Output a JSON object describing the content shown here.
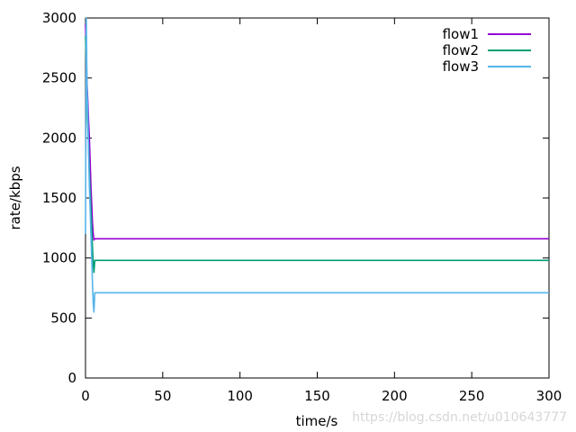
{
  "chart_data": {
    "type": "line",
    "title": "",
    "xlabel": "time/s",
    "ylabel": "rate/kbps",
    "xlim": [
      0,
      300
    ],
    "ylim": [
      0,
      3000
    ],
    "xticks": [
      0,
      50,
      100,
      150,
      200,
      250,
      300
    ],
    "yticks": [
      0,
      500,
      1000,
      1500,
      2000,
      2500,
      3000
    ],
    "grid": false,
    "legend": "top-right",
    "series": [
      {
        "name": "flow1",
        "color": "#9400d3",
        "x": [
          0,
          0.5,
          1,
          1.5,
          2,
          2.5,
          3,
          3.5,
          4,
          4.5,
          5,
          5.5,
          6,
          10,
          50,
          100,
          150,
          200,
          250,
          300
        ],
        "y": [
          2950,
          2700,
          2450,
          2300,
          2150,
          2000,
          1800,
          1600,
          1450,
          1300,
          1200,
          1150,
          1160,
          1160,
          1160,
          1160,
          1160,
          1160,
          1160,
          1160
        ]
      },
      {
        "name": "flow2",
        "color": "#009e73",
        "x": [
          0,
          0.5,
          1,
          1.5,
          2,
          2.5,
          3,
          3.5,
          4,
          4.5,
          5,
          5.5,
          6,
          10,
          50,
          100,
          150,
          200,
          250,
          300
        ],
        "y": [
          2850,
          2600,
          2300,
          2100,
          1950,
          1700,
          1550,
          1400,
          1250,
          1100,
          950,
          880,
          980,
          980,
          980,
          980,
          980,
          980,
          980,
          980
        ]
      },
      {
        "name": "flow3",
        "color": "#56b4e9",
        "x": [
          0,
          0.5,
          1,
          1.5,
          2,
          2.5,
          3,
          3.5,
          4,
          4.5,
          5,
          5.5,
          6,
          10,
          50,
          100,
          150,
          200,
          250,
          300
        ],
        "y": [
          1200,
          3000,
          2400,
          2200,
          1900,
          1600,
          1400,
          1200,
          1000,
          800,
          620,
          550,
          710,
          710,
          710,
          710,
          710,
          710,
          710,
          710
        ]
      }
    ]
  },
  "watermark": "https://blog.csdn.net/u010643777"
}
